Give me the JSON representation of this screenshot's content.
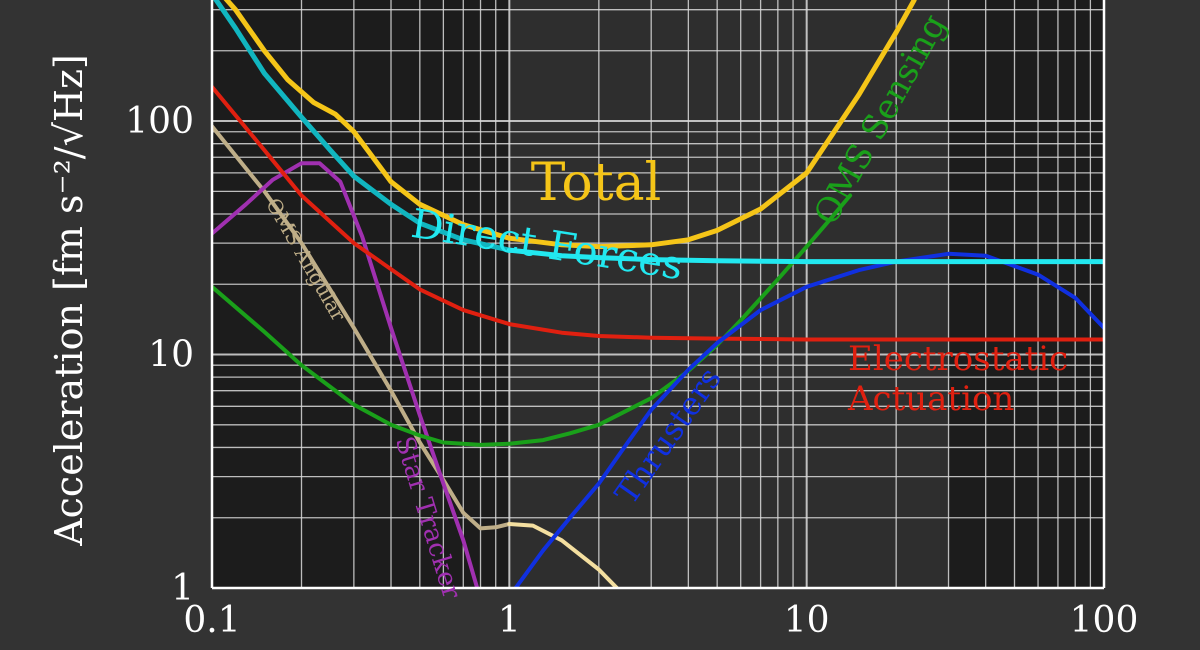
{
  "chart_data": {
    "type": "line",
    "title": "",
    "xlabel": "",
    "ylabel": "Acceleration [fm s⁻²/√Hz]",
    "x_scale": "log",
    "y_scale": "log",
    "xlim": [
      0.1,
      100
    ],
    "ylim": [
      1,
      330
    ],
    "grid": true,
    "legend": "inline labels",
    "x_ticks": [
      {
        "value": 0.1,
        "label": "0.1"
      },
      {
        "value": 1,
        "label": "1"
      },
      {
        "value": 10,
        "label": "10"
      },
      {
        "value": 100,
        "label": "100"
      }
    ],
    "y_ticks": [
      {
        "value": 1,
        "label": "1"
      },
      {
        "value": 10,
        "label": "10"
      },
      {
        "value": 100,
        "label": "100"
      }
    ],
    "shaded_bands": [
      {
        "from": 0.1,
        "to": 1,
        "color": "#1c1c1c"
      },
      {
        "from": 30,
        "to": 100,
        "color": "#1c1c1c"
      }
    ],
    "series": [
      {
        "name": "OMS Angular",
        "color": "#bfae88",
        "color_extended": "#f4dfa0",
        "extended_from": 1,
        "x": [
          0.1,
          0.15,
          0.2,
          0.3,
          0.4,
          0.5,
          0.6,
          0.7,
          0.8,
          0.9,
          1.0,
          1.2,
          1.5,
          2.0,
          2.3
        ],
        "y": [
          95,
          50,
          30,
          13,
          7,
          4.2,
          2.9,
          2.1,
          1.8,
          1.82,
          1.88,
          1.85,
          1.6,
          1.2,
          1.0
        ]
      },
      {
        "name": "Star Tracker",
        "color": "#a030b0",
        "x": [
          0.1,
          0.13,
          0.16,
          0.2,
          0.23,
          0.27,
          0.32,
          0.4,
          0.5,
          0.6,
          0.7,
          0.78
        ],
        "y": [
          33,
          44,
          56,
          66,
          66,
          55,
          32,
          13,
          5.5,
          2.8,
          1.6,
          1.0
        ]
      },
      {
        "name": "OMS Sensing",
        "color": "#1aa01a",
        "x": [
          0.1,
          0.15,
          0.2,
          0.3,
          0.4,
          0.5,
          0.6,
          0.8,
          1.0,
          1.3,
          1.6,
          2.0,
          3.0,
          4.0,
          5.0,
          6.0,
          8.0,
          10,
          12,
          14
        ],
        "y": [
          19.5,
          12.5,
          9.0,
          6.1,
          5.0,
          4.5,
          4.2,
          4.1,
          4.15,
          4.3,
          4.6,
          5.0,
          6.5,
          8.5,
          11,
          14,
          21,
          29,
          38,
          48
        ]
      },
      {
        "name": "Electrostatic Actuation",
        "color": "#e02010",
        "x": [
          0.1,
          0.15,
          0.2,
          0.3,
          0.5,
          0.7,
          1.0,
          1.5,
          2.0,
          3.0,
          5.0,
          10,
          30,
          100
        ],
        "y": [
          140,
          75,
          48,
          30,
          19,
          15.5,
          13.5,
          12.4,
          12.0,
          11.8,
          11.7,
          11.6,
          11.6,
          11.6
        ]
      },
      {
        "name": "Thrusters",
        "color": "#1030e0",
        "x": [
          1.05,
          1.3,
          1.6,
          2.0,
          2.5,
          3.0,
          4.0,
          5.0,
          7.0,
          10,
          15,
          20,
          30,
          40,
          60,
          80,
          100
        ],
        "y": [
          1.0,
          1.45,
          2.0,
          2.8,
          4.2,
          5.8,
          8.6,
          11.2,
          15.5,
          19.5,
          23,
          25,
          27,
          26.5,
          22,
          17.5,
          13
        ]
      },
      {
        "name": "Direct Forces",
        "color": "#11b6c0",
        "color_extended": "#22e8f0",
        "extended_from": 1,
        "x": [
          0.1,
          0.12,
          0.15,
          0.2,
          0.25,
          0.3,
          0.4,
          0.5,
          0.7,
          1.0,
          1.5,
          2.0,
          3.0,
          5.0,
          10,
          30,
          100
        ],
        "y": [
          350,
          250,
          160,
          104,
          75,
          58,
          44,
          36.5,
          31,
          28,
          26.5,
          26,
          25.5,
          25.2,
          25,
          25,
          25
        ]
      },
      {
        "name": "Total",
        "color": "#f5c518",
        "x": [
          0.1,
          0.12,
          0.15,
          0.18,
          0.22,
          0.26,
          0.3,
          0.4,
          0.5,
          0.7,
          1.0,
          1.5,
          2.0,
          3.0,
          4.0,
          5.0,
          7.0,
          10,
          15,
          20,
          23
        ],
        "y": [
          390,
          300,
          200,
          150,
          120,
          107,
          90,
          55,
          44,
          36,
          31.5,
          29.5,
          29,
          29.5,
          31,
          34,
          42,
          60,
          130,
          240,
          330
        ]
      }
    ],
    "annotations": [
      {
        "text": "Total",
        "series": "Total"
      },
      {
        "text": "Direct Forces",
        "series": "Direct Forces"
      },
      {
        "text": "Electrostatic",
        "series": "Electrostatic Actuation"
      },
      {
        "text": "Actuation",
        "series": "Electrostatic Actuation"
      },
      {
        "text": "OMS Sensing",
        "series": "OMS Sensing"
      },
      {
        "text": "Thrusters",
        "series": "Thrusters"
      },
      {
        "text": "Star Tracker",
        "series": "Star Tracker"
      },
      {
        "text": "OMS Angular",
        "series": "OMS Angular"
      }
    ]
  }
}
